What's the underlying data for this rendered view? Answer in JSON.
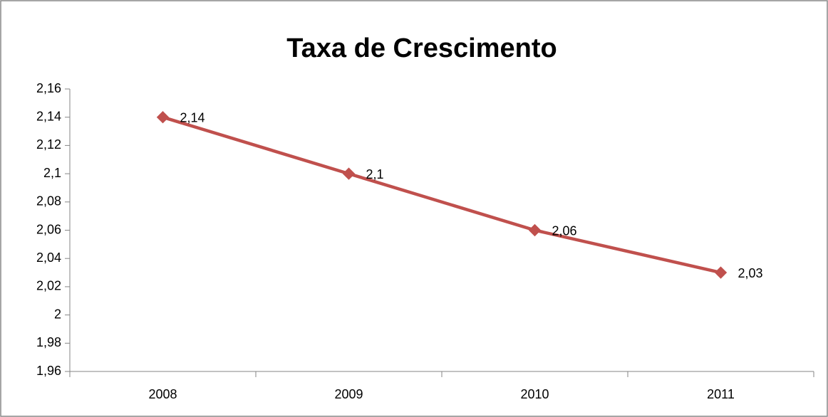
{
  "chart_data": {
    "type": "line",
    "title": "Taxa de Crescimento",
    "categories": [
      "2008",
      "2009",
      "2010",
      "2011"
    ],
    "values": [
      2.14,
      2.1,
      2.06,
      2.03
    ],
    "value_labels": [
      "2,14",
      "2,1",
      "2,06",
      "2,03"
    ],
    "color": "#c0504d",
    "ylim": [
      1.96,
      2.16
    ],
    "yticks": [
      {
        "value": 1.96,
        "label": "1,96"
      },
      {
        "value": 1.98,
        "label": "1,98"
      },
      2,
      {
        "value": 2.02,
        "label": "2,02"
      },
      {
        "value": 2.04,
        "label": "2,04"
      },
      {
        "value": 2.06,
        "label": "2,06"
      },
      {
        "value": 2.08,
        "label": "2,08"
      },
      {
        "value": 2.1,
        "label": "2,1"
      },
      {
        "value": 2.12,
        "label": "2,12"
      },
      {
        "value": 2.14,
        "label": "2,14"
      },
      {
        "value": 2.16,
        "label": "2,16"
      }
    ],
    "grid": false
  }
}
